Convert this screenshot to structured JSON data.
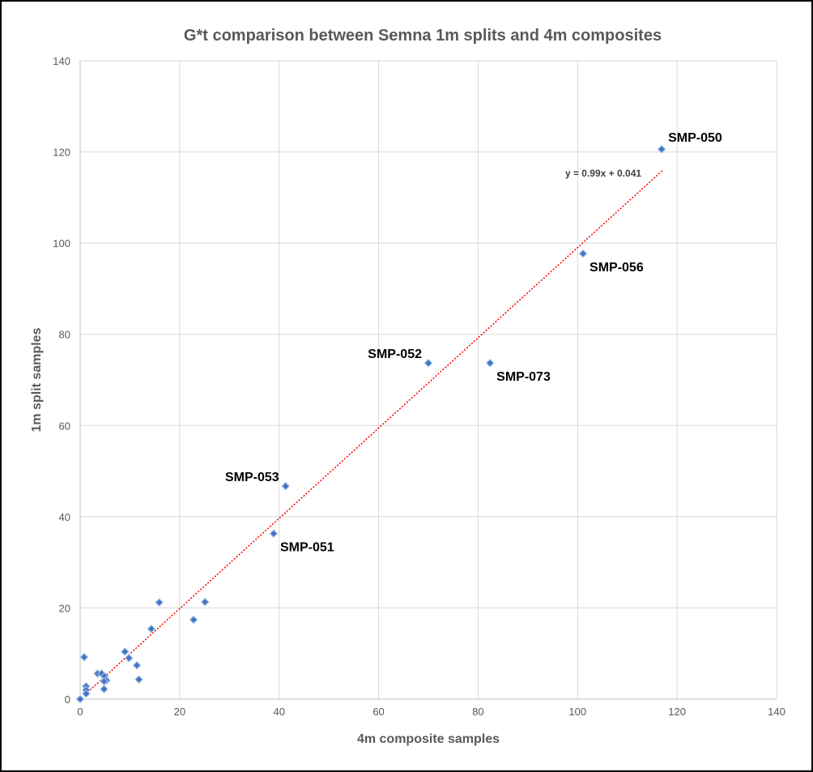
{
  "chart_data": {
    "type": "scatter",
    "title": "G*t comparison between Semna 1m splits and 4m composites",
    "xlabel": "4m composite samples",
    "ylabel": "1m split samples",
    "xlim": [
      0,
      140
    ],
    "ylim": [
      0,
      140
    ],
    "xticks": [
      0,
      20,
      40,
      60,
      80,
      100,
      120,
      140
    ],
    "yticks": [
      0,
      20,
      40,
      60,
      80,
      100,
      120,
      140
    ],
    "grid": true,
    "marker_color": "#4472C4",
    "trendline_color": "#FF0000",
    "points": [
      {
        "x": 0,
        "y": 0
      },
      {
        "x": 0.8,
        "y": 9.2
      },
      {
        "x": 1.2,
        "y": 2.8
      },
      {
        "x": 1.2,
        "y": 2.0
      },
      {
        "x": 1.2,
        "y": 1.2
      },
      {
        "x": 3.5,
        "y": 5.6
      },
      {
        "x": 4.3,
        "y": 5.6
      },
      {
        "x": 4.9,
        "y": 5.0
      },
      {
        "x": 5.3,
        "y": 4.1
      },
      {
        "x": 4.8,
        "y": 3.9
      },
      {
        "x": 4.8,
        "y": 2.2
      },
      {
        "x": 9.0,
        "y": 10.4
      },
      {
        "x": 9.8,
        "y": 9.0
      },
      {
        "x": 11.4,
        "y": 7.4
      },
      {
        "x": 11.8,
        "y": 4.3
      },
      {
        "x": 14.3,
        "y": 15.4
      },
      {
        "x": 15.9,
        "y": 21.2
      },
      {
        "x": 22.8,
        "y": 17.4
      },
      {
        "x": 25.1,
        "y": 21.3
      },
      {
        "x": 38.9,
        "y": 36.3,
        "label": "SMP-051",
        "pos": "below-right"
      },
      {
        "x": 41.3,
        "y": 46.7,
        "label": "SMP-053",
        "pos": "above-left"
      },
      {
        "x": 70.0,
        "y": 73.7,
        "label": "SMP-052",
        "pos": "above-left"
      },
      {
        "x": 82.4,
        "y": 73.7,
        "label": "SMP-073",
        "pos": "below-right"
      },
      {
        "x": 101.1,
        "y": 97.7,
        "label": "SMP-056",
        "pos": "below-right"
      },
      {
        "x": 116.9,
        "y": 120.6,
        "label": "SMP-050",
        "pos": "above-right"
      }
    ],
    "trendline": {
      "type": "linear",
      "slope": 0.99,
      "intercept": 0.041,
      "x_range": [
        1,
        117
      ],
      "equation_label": "y = 0.99x + 0.041"
    }
  }
}
